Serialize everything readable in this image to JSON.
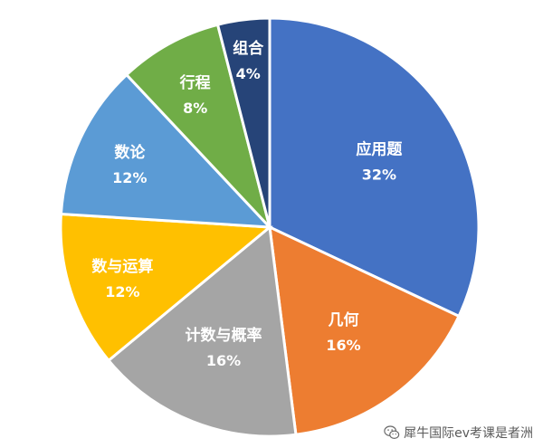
{
  "chart_data": {
    "type": "pie",
    "slices": [
      {
        "label": "应用题",
        "value": 32,
        "value_label": "32%",
        "color": "#4472C4"
      },
      {
        "label": "几何",
        "value": 16,
        "value_label": "16%",
        "color": "#ED7D31"
      },
      {
        "label": "计数与概率",
        "value": 16,
        "value_label": "16%",
        "color": "#A5A5A5"
      },
      {
        "label": "数与运算",
        "value": 12,
        "value_label": "12%",
        "color": "#FFC000"
      },
      {
        "label": "数论",
        "value": 12,
        "value_label": "12%",
        "color": "#5B9BD5"
      },
      {
        "label": "行程",
        "value": 8,
        "value_label": "8%",
        "color": "#70AD47"
      },
      {
        "label": "组合",
        "value": 4,
        "value_label": "4%",
        "color": "#264478"
      }
    ],
    "start_position": "12 o'clock",
    "direction": "clockwise",
    "slice_border_color": "#ffffff"
  },
  "watermark": {
    "text": "犀牛国际ev考课是者洲",
    "icon": "wechat-icon"
  }
}
